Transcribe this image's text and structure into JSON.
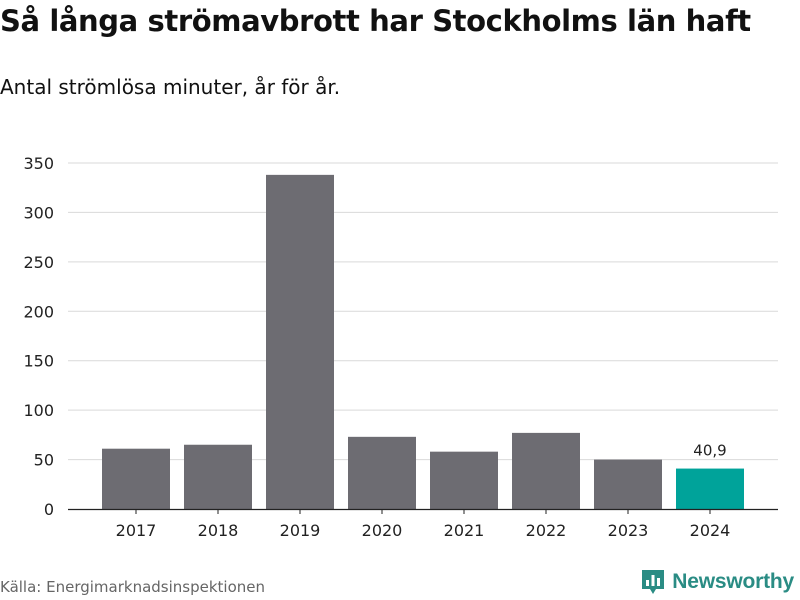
{
  "header": {
    "title": "Så långa strömavbrott har Stockholms län haft",
    "subtitle": "Antal strömlösa minuter, år för år."
  },
  "footer": {
    "source": "Källa: Energimarknadsinspektionen",
    "brand": "Newsworthy",
    "brand_icon": "bar-chart-logo-icon"
  },
  "colors": {
    "bar": "#6d6c72",
    "highlight": "#00a39a",
    "grid": "#d9d9d9",
    "axis": "#222222",
    "brand": "#2a8c84"
  },
  "chart_data": {
    "type": "bar",
    "title": "Så långa strömavbrott har Stockholms län haft",
    "subtitle": "Antal strömlösa minuter, år för år.",
    "xlabel": "",
    "ylabel": "",
    "categories": [
      "2017",
      "2018",
      "2019",
      "2020",
      "2021",
      "2022",
      "2023",
      "2024"
    ],
    "values": [
      61,
      65,
      338,
      73,
      58,
      77,
      50,
      40.9
    ],
    "highlight_index": 7,
    "data_labels": [
      {
        "index": 7,
        "text": "40,9"
      }
    ],
    "ylim": [
      0,
      350
    ],
    "yticks": [
      0,
      50,
      100,
      150,
      200,
      250,
      300,
      350
    ],
    "grid": true,
    "legend": "none"
  }
}
